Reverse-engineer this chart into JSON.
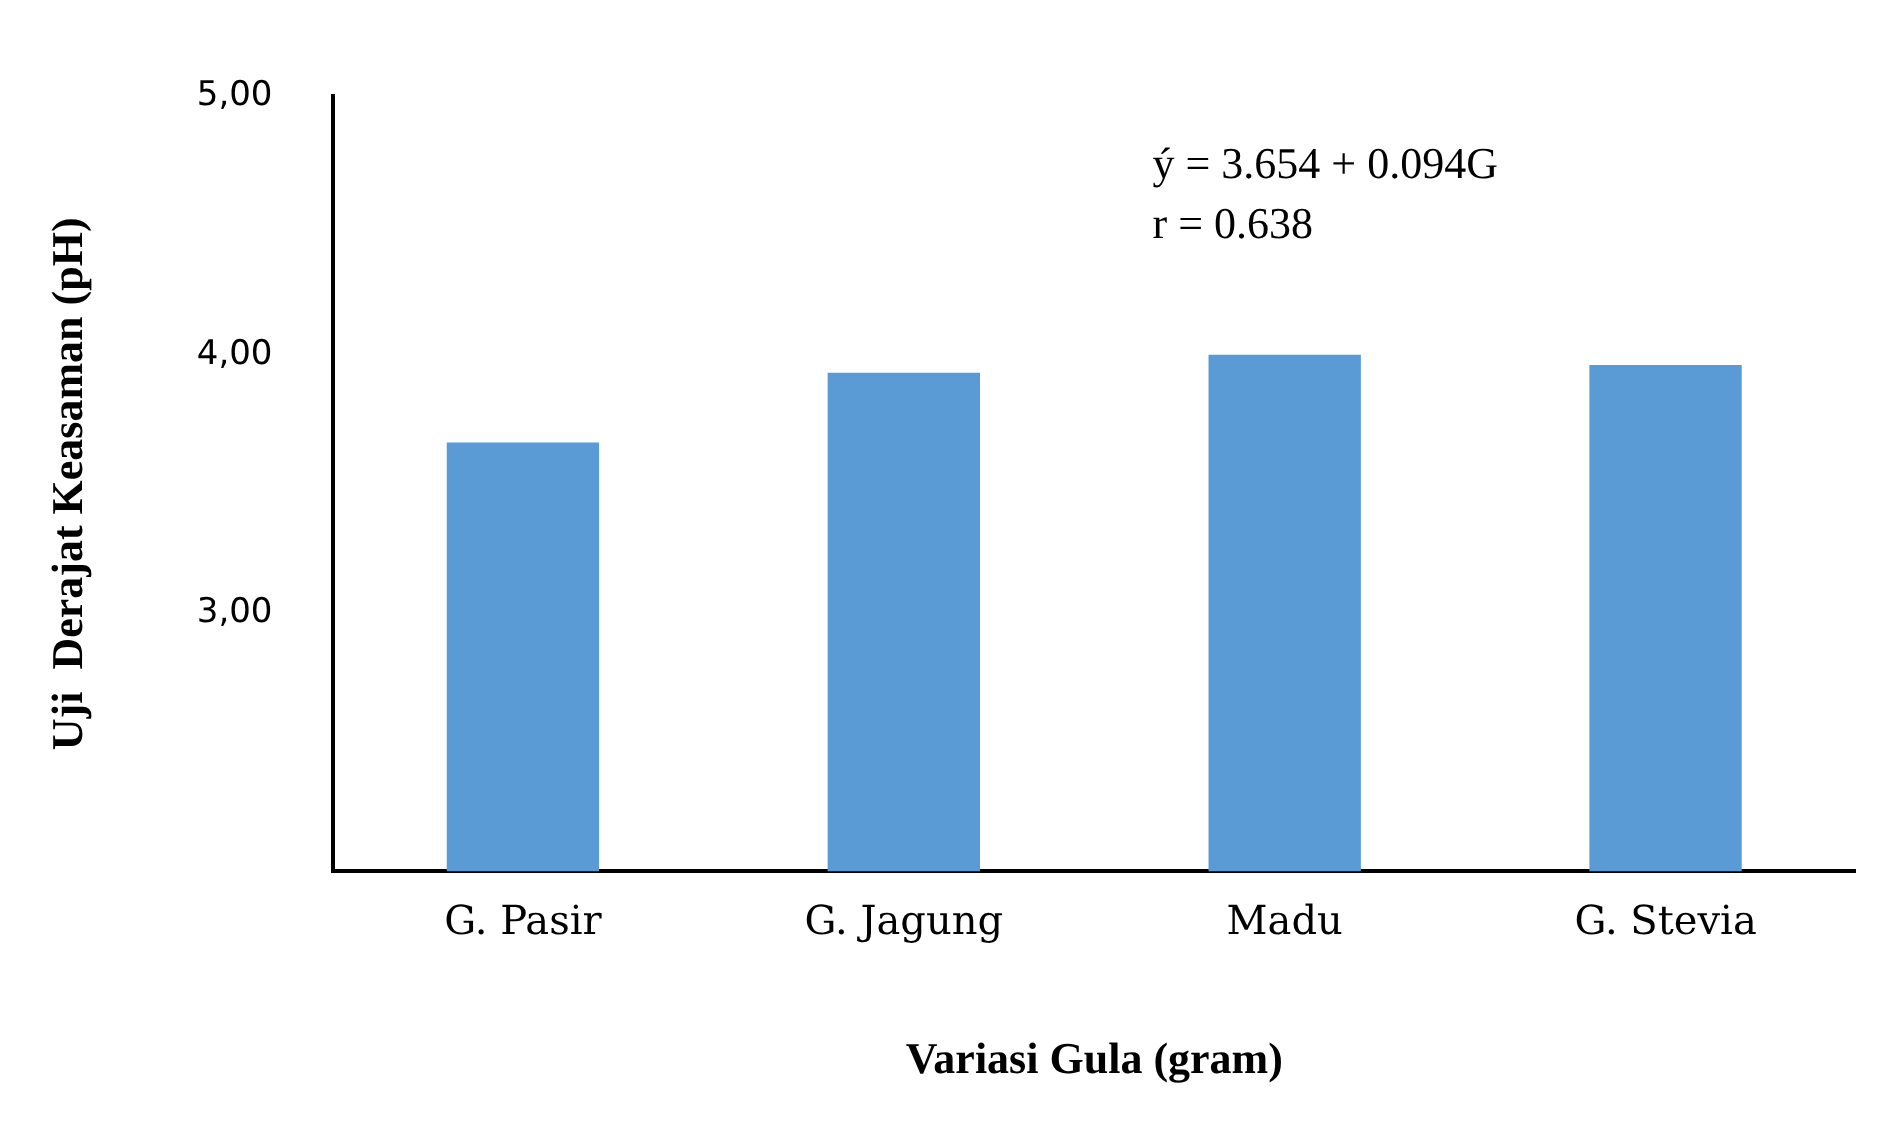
{
  "chart_data": {
    "type": "bar",
    "xlabel": "Variasi Gula (gram)",
    "ylabel": "Uji  Derajat Keasaman (pH)",
    "categories": [
      "G. Pasir",
      "G. Jagung",
      "Madu",
      "G. Stevia"
    ],
    "values": [
      3.66,
      3.93,
      4.0,
      3.96
    ],
    "color": "#5b9bd5",
    "ylim": [
      2,
      5
    ],
    "yticks": [
      {
        "value": 3,
        "label": "3,00"
      },
      {
        "value": 4,
        "label": "4,00"
      },
      {
        "value": 5,
        "label": "5,00"
      }
    ],
    "grid": false,
    "annotations": [
      "ý = 3.654 + 0.094G",
      "r = 0.638"
    ]
  }
}
